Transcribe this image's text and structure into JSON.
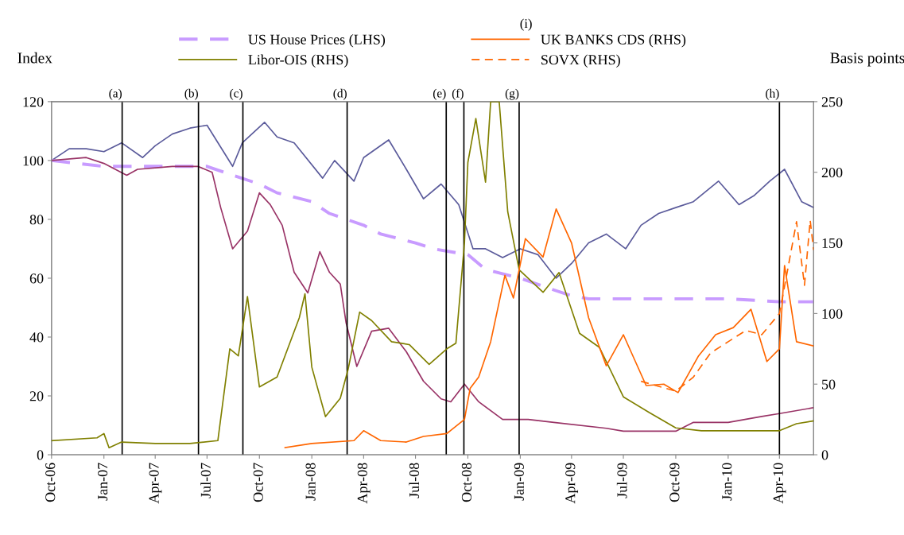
{
  "chart_data": {
    "type": "line",
    "ylabel": "Index",
    "y2label": "Basis points",
    "xlim": [
      "2006-10-01",
      "2010-05-31"
    ],
    "xticks": [
      {
        "value": "2006-10-01",
        "label": "Oct-06"
      },
      {
        "value": "2007-01-01",
        "label": "Jan-07"
      },
      {
        "value": "2007-04-01",
        "label": "Apr-07"
      },
      {
        "value": "2007-07-01",
        "label": "Jul-07"
      },
      {
        "value": "2007-10-01",
        "label": "Oct-07"
      },
      {
        "value": "2008-01-01",
        "label": "Jan-08"
      },
      {
        "value": "2008-04-01",
        "label": "Apr-08"
      },
      {
        "value": "2008-07-01",
        "label": "Jul-08"
      },
      {
        "value": "2008-10-01",
        "label": "Oct-08"
      },
      {
        "value": "2009-01-01",
        "label": "Jan-09"
      },
      {
        "value": "2009-04-01",
        "label": "Apr-09"
      },
      {
        "value": "2009-07-01",
        "label": "Jul-09"
      },
      {
        "value": "2009-10-01",
        "label": "Oct-09"
      },
      {
        "value": "2010-01-01",
        "label": "Jan-10"
      },
      {
        "value": "2010-04-01",
        "label": "Apr-10"
      }
    ],
    "ylim": [
      0,
      120
    ],
    "yticks": [
      0,
      20,
      40,
      60,
      80,
      100,
      120
    ],
    "y2lim": [
      0,
      250
    ],
    "y2ticks": [
      0,
      50,
      100,
      150,
      200,
      250
    ],
    "grid": false,
    "legend": "top",
    "marker": "none",
    "series": [
      {
        "color": "#5b5b9b",
        "line_style": "solid",
        "x": [
          "2006-10-01",
          "2006-11-01",
          "2006-12-01",
          "2007-01-01",
          "2007-02-01",
          "2007-03-10",
          "2007-04-01",
          "2007-05-01",
          "2007-06-01",
          "2007-07-01",
          "2007-08-15",
          "2007-09-01",
          "2007-10-10",
          "2007-11-01",
          "2007-12-01",
          "2008-01-20",
          "2008-02-10",
          "2008-03-15",
          "2008-04-01",
          "2008-05-15",
          "2008-06-15",
          "2008-07-15",
          "2008-08-15",
          "2008-09-15",
          "2008-10-10",
          "2008-11-01",
          "2008-12-01",
          "2009-01-01",
          "2009-02-01",
          "2009-03-05",
          "2009-04-01",
          "2009-05-01",
          "2009-06-01",
          "2009-07-05",
          "2009-08-01",
          "2009-09-01",
          "2009-10-01",
          "2009-11-01",
          "2009-12-15",
          "2010-01-20",
          "2010-02-15",
          "2010-03-15",
          "2010-04-10",
          "2010-05-10",
          "2010-05-31"
        ],
        "values": [
          100,
          104,
          104,
          103,
          106,
          101,
          105,
          109,
          111,
          112,
          98,
          106,
          113,
          108,
          106,
          94,
          100,
          93,
          101,
          107,
          97,
          87,
          92,
          85,
          70,
          70,
          67,
          70,
          68,
          60,
          65,
          72,
          75,
          70,
          78,
          82,
          84,
          86,
          93,
          85,
          88,
          93,
          97,
          86,
          84
        ]
      },
      {
        "name": "US House Prices (LHS)",
        "color": "#c89bff",
        "line_style": "dashed",
        "x": [
          "2006-10-01",
          "2007-01-01",
          "2007-04-01",
          "2007-07-01",
          "2007-08-15",
          "2007-10-01",
          "2007-11-01",
          "2008-01-01",
          "2008-02-01",
          "2008-04-01",
          "2008-05-01",
          "2008-07-01",
          "2008-08-01",
          "2008-10-01",
          "2008-11-01",
          "2009-01-01",
          "2009-03-01",
          "2009-04-01",
          "2009-05-01",
          "2009-09-01",
          "2010-01-01",
          "2010-04-01",
          "2010-05-31"
        ],
        "values": [
          100,
          98,
          98,
          98,
          95,
          92,
          89,
          86,
          82,
          78,
          75,
          72,
          70,
          68,
          63,
          60,
          56,
          54,
          53,
          53,
          53,
          52,
          52
        ]
      },
      {
        "color": "#993366",
        "line_style": "solid",
        "x": [
          "2006-10-01",
          "2006-12-01",
          "2007-01-01",
          "2007-02-10",
          "2007-03-01",
          "2007-05-01",
          "2007-06-15",
          "2007-07-10",
          "2007-07-25",
          "2007-08-15",
          "2007-09-10",
          "2007-10-01",
          "2007-10-20",
          "2007-11-10",
          "2007-12-01",
          "2007-12-25",
          "2008-01-15",
          "2008-02-01",
          "2008-02-20",
          "2008-03-01",
          "2008-03-20",
          "2008-04-15",
          "2008-05-15",
          "2008-06-15",
          "2008-07-15",
          "2008-08-15",
          "2008-09-01",
          "2008-09-25",
          "2008-10-20",
          "2008-12-01",
          "2009-01-15",
          "2009-03-01",
          "2009-06-01",
          "2009-07-01",
          "2009-10-01",
          "2009-11-01",
          "2010-01-01",
          "2010-03-01",
          "2010-04-01",
          "2010-05-31"
        ],
        "values": [
          100,
          101,
          99,
          95,
          97,
          98,
          98,
          96,
          84,
          70,
          76,
          89,
          85,
          78,
          62,
          55,
          69,
          62,
          58,
          45,
          30,
          42,
          43,
          35,
          25,
          19,
          18,
          24,
          18,
          12,
          12,
          11,
          9,
          8,
          8,
          11,
          11,
          13,
          14,
          16
        ]
      },
      {
        "name": "Libor-OIS (RHS)",
        "color": "#808000",
        "line_style": "solid",
        "axis": "y2",
        "x": [
          "2006-10-01",
          "2006-12-20",
          "2007-01-01",
          "2007-01-10",
          "2007-02-01",
          "2007-04-01",
          "2007-06-01",
          "2007-07-20",
          "2007-08-10",
          "2007-08-25",
          "2007-09-10",
          "2007-10-01",
          "2007-11-01",
          "2007-12-10",
          "2007-12-20",
          "2008-01-01",
          "2008-01-25",
          "2008-02-20",
          "2008-03-05",
          "2008-03-25",
          "2008-04-15",
          "2008-05-20",
          "2008-06-20",
          "2008-07-25",
          "2008-08-25",
          "2008-09-10",
          "2008-09-25",
          "2008-10-01",
          "2008-10-15",
          "2008-11-01",
          "2008-11-10",
          "2008-11-25",
          "2008-12-10",
          "2008-12-30",
          "2009-02-10",
          "2009-03-10",
          "2009-04-15",
          "2009-05-20",
          "2009-07-01",
          "2009-08-15",
          "2009-10-01",
          "2009-11-15",
          "2010-01-01",
          "2010-04-01",
          "2010-05-01",
          "2010-05-31"
        ],
        "values": [
          10,
          12,
          15,
          5,
          9,
          8,
          8,
          10,
          75,
          70,
          112,
          48,
          55,
          97,
          114,
          62,
          27,
          40,
          61,
          101,
          95,
          80,
          78,
          64,
          75,
          79,
          150,
          207,
          238,
          193,
          250,
          250,
          172,
          131,
          115,
          129,
          86,
          76,
          41,
          30,
          19,
          17,
          17,
          17,
          22,
          24
        ]
      },
      {
        "name": "UK BANKS CDS (RHS)",
        "color": "#ff6600",
        "line_style": "solid",
        "axis": "y2",
        "x": [
          "2007-11-15",
          "2008-01-01",
          "2008-03-15",
          "2008-04-01",
          "2008-05-01",
          "2008-06-15",
          "2008-07-15",
          "2008-08-25",
          "2008-09-25",
          "2008-10-05",
          "2008-10-20",
          "2008-11-10",
          "2008-12-05",
          "2008-12-20",
          "2009-01-10",
          "2009-02-10",
          "2009-03-05",
          "2009-04-01",
          "2009-05-01",
          "2009-06-01",
          "2009-07-01",
          "2009-08-10",
          "2009-09-10",
          "2009-10-05",
          "2009-11-10",
          "2009-12-10",
          "2010-01-10",
          "2010-02-10",
          "2010-03-10",
          "2010-04-01",
          "2010-04-10",
          "2010-05-01",
          "2010-05-31"
        ],
        "values": [
          5,
          8,
          10,
          17,
          10,
          9,
          13,
          15,
          25,
          47,
          55,
          80,
          127,
          111,
          153,
          140,
          174,
          150,
          97,
          63,
          85,
          49,
          50,
          44,
          70,
          85,
          90,
          103,
          66,
          75,
          134,
          80,
          77
        ]
      },
      {
        "name": "SOVX (RHS)",
        "color": "#ff6600",
        "line_style": "dashed",
        "axis": "y2",
        "x": [
          "2009-08-01",
          "2009-10-01",
          "2009-11-01",
          "2009-12-01",
          "2010-01-01",
          "2010-02-01",
          "2010-03-01",
          "2010-04-01",
          "2010-04-15",
          "2010-05-01",
          "2010-05-15",
          "2010-05-25",
          "2010-05-31"
        ],
        "values": [
          52,
          45,
          55,
          72,
          80,
          88,
          85,
          100,
          130,
          165,
          120,
          166,
          145
        ]
      }
    ],
    "ref_lines": [
      {
        "axis": "x",
        "value": "2007-02-02",
        "label": "(a)",
        "color": "#000000"
      },
      {
        "axis": "x",
        "value": "2007-06-16",
        "label": "(b)",
        "color": "#000000"
      },
      {
        "axis": "x",
        "value": "2007-09-02",
        "label": "(c)",
        "color": "#000000"
      },
      {
        "axis": "x",
        "value": "2008-03-03",
        "label": "(d)",
        "color": "#000000"
      },
      {
        "axis": "x",
        "value": "2008-08-24",
        "label": "(e)",
        "color": "#000000"
      },
      {
        "axis": "x",
        "value": "2008-09-24",
        "label": "(f)",
        "color": "#000000"
      },
      {
        "axis": "x",
        "value": "2008-12-30",
        "label": "(g)",
        "color": "#000000"
      },
      {
        "axis": "x",
        "value": "2010-04-01",
        "label": "(h)",
        "color": "#000000"
      }
    ],
    "annotations": [
      "(i)"
    ]
  }
}
